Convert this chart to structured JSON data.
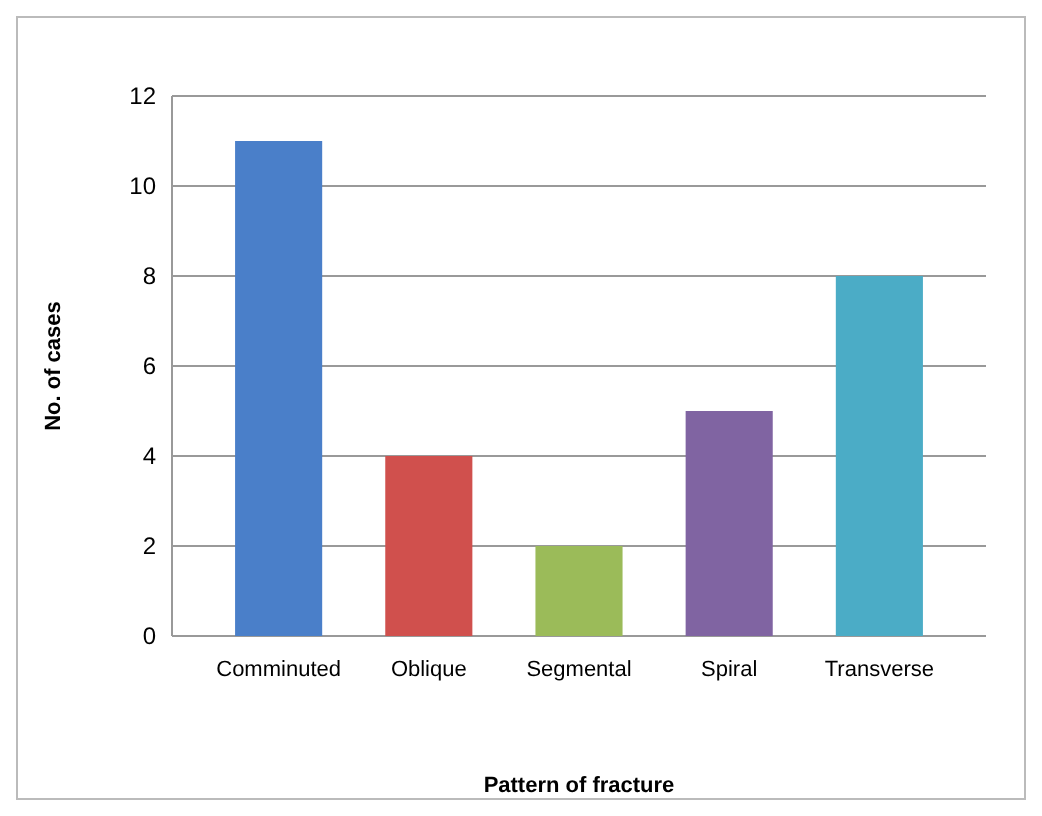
{
  "chart_data": {
    "type": "bar",
    "xlabel": "Pattern of fracture",
    "ylabel": "No. of cases",
    "categories": [
      "Comminuted",
      "Oblique",
      "Segmental",
      "Spiral",
      "Transverse"
    ],
    "values": [
      11,
      4,
      2,
      5,
      8
    ],
    "colors": [
      "#4a7fc9",
      "#d0504d",
      "#9bbb59",
      "#8064a2",
      "#4bacc6"
    ],
    "ylim": [
      0,
      12
    ],
    "yticks": [
      0,
      2,
      4,
      6,
      8,
      10,
      12
    ],
    "grid": "y"
  }
}
